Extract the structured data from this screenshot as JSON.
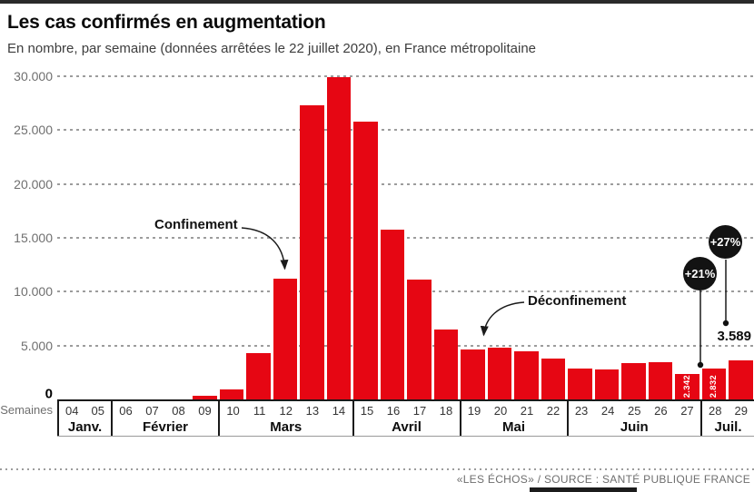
{
  "header": {
    "title": "Les cas confirmés en augmentation",
    "subtitle": "En nombre, par semaine (données arrêtées le 22 juillet 2020), en France métropolitaine"
  },
  "chart_data": {
    "type": "bar",
    "title": "Les cas confirmés en augmentation",
    "x_axis_label": "Semaines",
    "categories": [
      "04",
      "05",
      "06",
      "07",
      "08",
      "09",
      "10",
      "11",
      "12",
      "13",
      "14",
      "15",
      "16",
      "17",
      "18",
      "19",
      "20",
      "21",
      "22",
      "23",
      "24",
      "25",
      "26",
      "27",
      "28",
      "29"
    ],
    "values": [
      0,
      0,
      0,
      0,
      0,
      300,
      950,
      4300,
      11200,
      27300,
      29900,
      25800,
      15800,
      11100,
      6500,
      4600,
      4800,
      4450,
      3800,
      2900,
      2750,
      3350,
      3450,
      2342,
      2832,
      3589
    ],
    "months": [
      {
        "label": "Janv.",
        "weeks": 2
      },
      {
        "label": "Février",
        "weeks": 4
      },
      {
        "label": "Mars",
        "weeks": 5
      },
      {
        "label": "Avril",
        "weeks": 4
      },
      {
        "label": "Mai",
        "weeks": 4
      },
      {
        "label": "Juin",
        "weeks": 5
      },
      {
        "label": "Juil.",
        "weeks": 2
      }
    ],
    "yticks": [
      {
        "value": 30000,
        "label": "30.000"
      },
      {
        "value": 25000,
        "label": "25.000"
      },
      {
        "value": 20000,
        "label": "20.000"
      },
      {
        "value": 15000,
        "label": "15.000"
      },
      {
        "value": 10000,
        "label": "10.000"
      },
      {
        "value": 5000,
        "label": "5.000"
      },
      {
        "value": 0,
        "label": "0"
      }
    ],
    "ylim": [
      0,
      30000
    ],
    "grid": "dashed-horizontal",
    "bar_value_labels": {
      "27": "2.342",
      "28": "2.832"
    },
    "annotations": {
      "confinement": {
        "label": "Confinement",
        "target_week": "12"
      },
      "deconfinement": {
        "label": "Déconfinement",
        "target_week": "19"
      },
      "pct_week28": {
        "label": "+21%"
      },
      "pct_week29": {
        "label": "+27%"
      },
      "last_value": {
        "label": "3.589",
        "target_week": "29"
      }
    },
    "colors": {
      "bar": "#e60613",
      "annotation_circle": "#131313",
      "grid": "#9c9c9c"
    }
  },
  "footer": {
    "source": "«LES ÉCHOS» / SOURCE : SANTÉ PUBLIQUE FRANCE"
  }
}
